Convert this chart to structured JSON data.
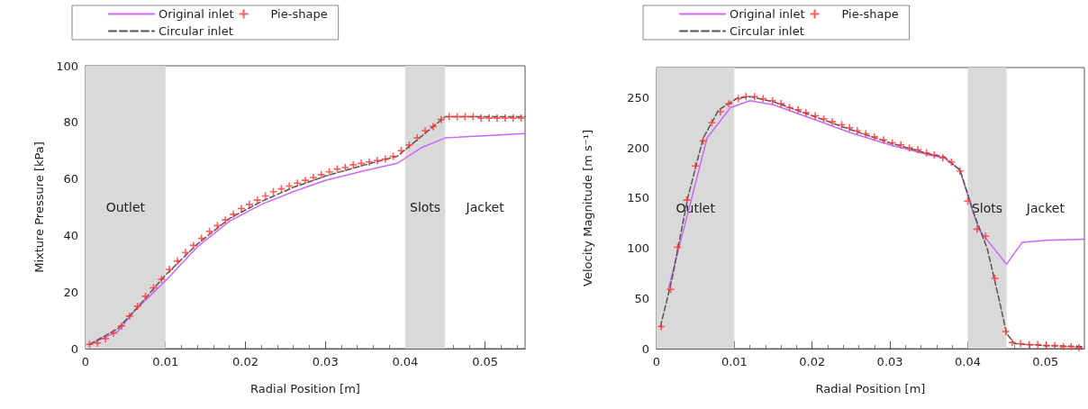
{
  "chart_data": [
    {
      "type": "line",
      "xlabel": "Radial Position [m]",
      "ylabel": "Mixture Pressure [kPa]",
      "xlim": [
        0,
        0.055
      ],
      "xticks": [
        0,
        0.01,
        0.02,
        0.03,
        0.04,
        0.05
      ],
      "ylim": [
        0,
        100
      ],
      "yticks": [
        0,
        20,
        40,
        60,
        80,
        100
      ],
      "grid": false,
      "legend": "top",
      "bands": [
        {
          "axis": "x",
          "from": 0,
          "to": 0.01,
          "label": "Outlet",
          "color": "#d9d9d9"
        },
        {
          "axis": "x",
          "from": 0.04,
          "to": 0.045,
          "label": "Slots",
          "color": "#d9d9d9"
        }
      ],
      "annotations": [
        "Jacket"
      ],
      "series": [
        {
          "name": "Original inlet",
          "color": "#cc66ff",
          "marker": "none",
          "line_style": "solid",
          "x": [
            0.0005,
            0.004,
            0.006,
            0.01,
            0.014,
            0.018,
            0.022,
            0.026,
            0.03,
            0.035,
            0.039,
            0.042,
            0.045,
            0.055
          ],
          "values": [
            1.5,
            6,
            13,
            24,
            36,
            45,
            51,
            55.5,
            59.5,
            63,
            65.5,
            71,
            74.5,
            76
          ]
        },
        {
          "name": "Pie-shape",
          "type": "scatter",
          "color": "#ff3333",
          "marker": "cross",
          "x": [
            0.0005,
            0.0015,
            0.0025,
            0.0035,
            0.0045,
            0.0055,
            0.0065,
            0.0075,
            0.0085,
            0.0095,
            0.0105,
            0.0115,
            0.0125,
            0.0135,
            0.0145,
            0.0155,
            0.0165,
            0.0175,
            0.0185,
            0.0195,
            0.0205,
            0.0215,
            0.0225,
            0.0235,
            0.0245,
            0.0255,
            0.0265,
            0.0275,
            0.0285,
            0.0295,
            0.0305,
            0.0315,
            0.0325,
            0.0335,
            0.0345,
            0.0355,
            0.0365,
            0.0375,
            0.0385,
            0.0395,
            0.0405,
            0.0415,
            0.0425,
            0.0435,
            0.0445,
            0.0455,
            0.0465,
            0.0475,
            0.0485,
            0.0495,
            0.0505,
            0.0515,
            0.0525,
            0.0535,
            0.0545
          ],
          "values": [
            1.5,
            2,
            3.5,
            5.5,
            8,
            11.5,
            15,
            18.5,
            21.5,
            24.5,
            28,
            31,
            34,
            36.5,
            39,
            41.5,
            43.5,
            45.5,
            47.5,
            49.5,
            51,
            52.5,
            54,
            55.5,
            56.5,
            57.5,
            58.5,
            59.5,
            60.5,
            61.5,
            62.5,
            63.5,
            64,
            65,
            65.5,
            66,
            66.5,
            67,
            68,
            70,
            72,
            74.5,
            77,
            78.5,
            81,
            82,
            82,
            82,
            82,
            81.5,
            81.5,
            81.5,
            81.5,
            81.5,
            81.5
          ]
        },
        {
          "name": "Circular inlet",
          "color": "#555555",
          "marker": "none",
          "line_style": "dashed",
          "x": [
            0.0005,
            0.004,
            0.006,
            0.01,
            0.014,
            0.018,
            0.022,
            0.026,
            0.03,
            0.035,
            0.039,
            0.042,
            0.045,
            0.055
          ],
          "values": [
            1.5,
            7,
            13,
            26,
            37,
            46,
            52,
            57,
            61,
            65,
            68,
            75,
            82,
            82
          ]
        }
      ]
    },
    {
      "type": "line",
      "xlabel": "Radial Position [m]",
      "ylabel": "Velocity Magnitude [m s⁻¹]",
      "xlim": [
        0,
        0.055
      ],
      "xticks": [
        0,
        0.01,
        0.02,
        0.03,
        0.04,
        0.05
      ],
      "ylim": [
        0,
        280
      ],
      "yticks": [
        0,
        50,
        100,
        150,
        200,
        250
      ],
      "grid": false,
      "legend": "top",
      "bands": [
        {
          "axis": "x",
          "from": 0,
          "to": 0.01,
          "label": "Outlet",
          "color": "#d9d9d9"
        },
        {
          "axis": "x",
          "from": 0.04,
          "to": 0.045,
          "label": "Slots",
          "color": "#d9d9d9"
        }
      ],
      "annotations": [
        "Jacket"
      ],
      "series": [
        {
          "name": "Original inlet",
          "color": "#cc66ff",
          "marker": "none",
          "line_style": "solid",
          "x": [
            0.0015,
            0.0065,
            0.0095,
            0.012,
            0.015,
            0.02,
            0.025,
            0.03,
            0.035,
            0.037,
            0.039,
            0.0405,
            0.0415,
            0.045,
            0.047,
            0.05,
            0.055
          ],
          "values": [
            59,
            210,
            240,
            247,
            243,
            229,
            215,
            203,
            193,
            190,
            178,
            140,
            118,
            84,
            106,
            108,
            109
          ]
        },
        {
          "name": "Pie-shape",
          "type": "scatter",
          "color": "#ff3333",
          "marker": "cross",
          "x": [
            0.0006,
            0.0018,
            0.0027,
            0.0039,
            0.005,
            0.006,
            0.0071,
            0.0082,
            0.0093,
            0.0105,
            0.0115,
            0.0126,
            0.0137,
            0.0149,
            0.016,
            0.0171,
            0.0182,
            0.0192,
            0.0204,
            0.0215,
            0.0226,
            0.0238,
            0.0248,
            0.0258,
            0.0269,
            0.028,
            0.0292,
            0.0303,
            0.0314,
            0.0325,
            0.0336,
            0.0347,
            0.0357,
            0.0368,
            0.0379,
            0.039,
            0.04,
            0.0412,
            0.0423,
            0.0435,
            0.0449,
            0.0457,
            0.0468,
            0.0479,
            0.049,
            0.0501,
            0.0512,
            0.0523,
            0.0533,
            0.0543
          ],
          "values": [
            22,
            59,
            101,
            148,
            182,
            207,
            225,
            236,
            244,
            249,
            251,
            251,
            249,
            247,
            244,
            240,
            238,
            235,
            232,
            229,
            226,
            223,
            220,
            217,
            214,
            211,
            208,
            205,
            203,
            200,
            198,
            195,
            193,
            190,
            186,
            177,
            147,
            119,
            112,
            70,
            17,
            6,
            5,
            4,
            4,
            3,
            3,
            2,
            2,
            1
          ]
        },
        {
          "name": "Circular inlet",
          "color": "#555555",
          "marker": "none",
          "line_style": "dashed",
          "x": [
            0.0005,
            0.002,
            0.004,
            0.006,
            0.008,
            0.0105,
            0.012,
            0.015,
            0.02,
            0.025,
            0.03,
            0.035,
            0.037,
            0.039,
            0.041,
            0.0425,
            0.044,
            0.045,
            0.046,
            0.05,
            0.055
          ],
          "values": [
            22,
            70,
            150,
            210,
            238,
            250,
            251,
            246,
            232,
            218,
            205,
            194,
            191,
            178,
            130,
            100,
            50,
            15,
            5,
            3,
            2
          ]
        }
      ]
    }
  ]
}
